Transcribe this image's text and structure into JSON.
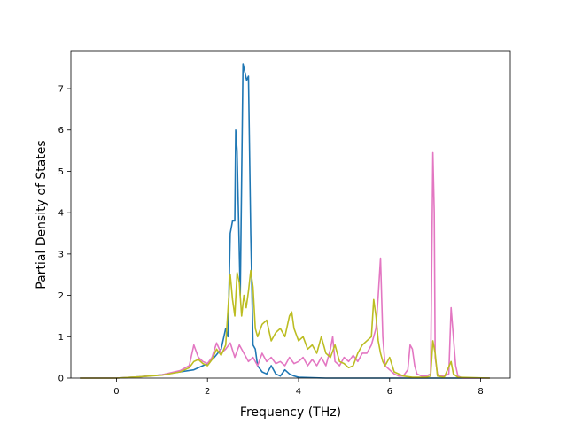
{
  "chart_data": {
    "type": "line",
    "title": "",
    "xlabel": "Frequency (THz)",
    "ylabel": "Partial Density of States",
    "xlim": [
      -1.0,
      8.65
    ],
    "ylim": [
      0,
      7.9
    ],
    "xticks": [
      0,
      2,
      4,
      6,
      8
    ],
    "yticks": [
      0,
      1,
      2,
      3,
      4,
      5,
      6,
      7
    ],
    "grid": false,
    "legend": "none",
    "series": [
      {
        "color": "#1f77b4",
        "x": [
          -0.8,
          0.0,
          0.5,
          1.0,
          1.4,
          1.7,
          2.0,
          2.15,
          2.3,
          2.4,
          2.45,
          2.5,
          2.55,
          2.6,
          2.62,
          2.65,
          2.68,
          2.72,
          2.78,
          2.82,
          2.86,
          2.9,
          2.95,
          3.0,
          3.05,
          3.1,
          3.2,
          3.3,
          3.4,
          3.5,
          3.6,
          3.7,
          3.8,
          3.9,
          4.0,
          4.3,
          4.6,
          5.0,
          5.5,
          6.0,
          6.5,
          7.0,
          7.5,
          8.2
        ],
        "y": [
          0,
          0,
          0.03,
          0.08,
          0.15,
          0.2,
          0.35,
          0.5,
          0.7,
          1.2,
          1.0,
          3.5,
          3.8,
          3.8,
          6.0,
          5.5,
          4.0,
          2.0,
          7.6,
          7.4,
          7.2,
          7.3,
          3.5,
          0.8,
          0.7,
          0.3,
          0.15,
          0.1,
          0.3,
          0.1,
          0.05,
          0.2,
          0.1,
          0.05,
          0.02,
          0.01,
          0.0,
          0.0,
          0.0,
          0.0,
          0.0,
          0.0,
          0.0,
          0.0
        ]
      },
      {
        "color": "#e377c2",
        "x": [
          -0.8,
          0.0,
          0.5,
          1.0,
          1.4,
          1.6,
          1.7,
          1.8,
          1.9,
          2.0,
          2.1,
          2.2,
          2.3,
          2.4,
          2.5,
          2.6,
          2.7,
          2.8,
          2.9,
          3.0,
          3.1,
          3.2,
          3.3,
          3.4,
          3.5,
          3.6,
          3.7,
          3.8,
          3.9,
          4.0,
          4.1,
          4.2,
          4.3,
          4.4,
          4.5,
          4.6,
          4.7,
          4.75,
          4.8,
          4.9,
          5.0,
          5.1,
          5.2,
          5.3,
          5.4,
          5.5,
          5.6,
          5.7,
          5.75,
          5.8,
          5.85,
          5.9,
          6.0,
          6.1,
          6.2,
          6.3,
          6.4,
          6.45,
          6.5,
          6.55,
          6.6,
          6.7,
          6.8,
          6.9,
          6.95,
          6.98,
          7.0,
          7.05,
          7.1,
          7.2,
          7.3,
          7.35,
          7.4,
          7.45,
          7.5,
          7.6,
          8.2
        ],
        "y": [
          0,
          0,
          0.03,
          0.08,
          0.18,
          0.3,
          0.8,
          0.5,
          0.4,
          0.35,
          0.5,
          0.85,
          0.6,
          0.7,
          0.85,
          0.5,
          0.8,
          0.6,
          0.4,
          0.5,
          0.3,
          0.6,
          0.4,
          0.5,
          0.35,
          0.4,
          0.3,
          0.5,
          0.35,
          0.4,
          0.5,
          0.3,
          0.45,
          0.3,
          0.5,
          0.3,
          0.7,
          1.0,
          0.4,
          0.3,
          0.5,
          0.4,
          0.55,
          0.4,
          0.6,
          0.6,
          0.8,
          1.2,
          2.0,
          2.9,
          1.0,
          0.3,
          0.2,
          0.1,
          0.05,
          0.05,
          0.2,
          0.8,
          0.7,
          0.3,
          0.1,
          0.05,
          0.05,
          0.1,
          5.45,
          4.0,
          0.5,
          0.1,
          0.05,
          0.05,
          0.1,
          1.7,
          1.0,
          0.3,
          0.05,
          0.0,
          0.0
        ]
      },
      {
        "color": "#bcbd22",
        "x": [
          -0.8,
          0.0,
          0.5,
          1.0,
          1.4,
          1.6,
          1.7,
          1.8,
          1.9,
          2.0,
          2.1,
          2.2,
          2.3,
          2.4,
          2.5,
          2.55,
          2.6,
          2.65,
          2.7,
          2.75,
          2.8,
          2.85,
          2.9,
          2.95,
          3.0,
          3.05,
          3.1,
          3.2,
          3.3,
          3.4,
          3.5,
          3.6,
          3.7,
          3.8,
          3.85,
          3.9,
          4.0,
          4.1,
          4.2,
          4.3,
          4.4,
          4.5,
          4.6,
          4.7,
          4.8,
          4.9,
          5.0,
          5.1,
          5.2,
          5.3,
          5.4,
          5.5,
          5.6,
          5.65,
          5.7,
          5.75,
          5.8,
          5.85,
          5.9,
          6.0,
          6.1,
          6.3,
          6.5,
          6.8,
          6.9,
          6.95,
          7.0,
          7.05,
          7.2,
          7.35,
          7.4,
          7.5,
          8.2
        ],
        "y": [
          0,
          0,
          0.03,
          0.07,
          0.15,
          0.25,
          0.4,
          0.45,
          0.35,
          0.3,
          0.45,
          0.7,
          0.55,
          0.8,
          2.5,
          1.9,
          1.5,
          2.55,
          2.3,
          1.5,
          2.0,
          1.7,
          2.1,
          2.6,
          2.2,
          1.2,
          1.0,
          1.3,
          1.4,
          0.9,
          1.1,
          1.2,
          1.0,
          1.5,
          1.6,
          1.2,
          0.9,
          1.0,
          0.7,
          0.8,
          0.6,
          1.0,
          0.6,
          0.5,
          0.8,
          0.4,
          0.35,
          0.25,
          0.3,
          0.6,
          0.8,
          0.9,
          1.0,
          1.9,
          1.5,
          0.9,
          0.6,
          0.4,
          0.3,
          0.5,
          0.15,
          0.05,
          0.02,
          0.02,
          0.05,
          0.9,
          0.6,
          0.05,
          0.02,
          0.4,
          0.1,
          0.02,
          0.0
        ]
      }
    ]
  }
}
